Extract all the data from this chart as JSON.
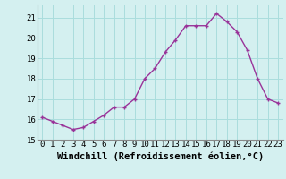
{
  "x": [
    0,
    1,
    2,
    3,
    4,
    5,
    6,
    7,
    8,
    9,
    10,
    11,
    12,
    13,
    14,
    15,
    16,
    17,
    18,
    19,
    20,
    21,
    22,
    23
  ],
  "y": [
    16.1,
    15.9,
    15.7,
    15.5,
    15.6,
    15.9,
    16.2,
    16.6,
    16.6,
    17.0,
    18.0,
    18.5,
    19.3,
    19.9,
    20.6,
    20.6,
    20.6,
    21.2,
    20.8,
    20.3,
    19.4,
    18.0,
    17.0,
    16.8
  ],
  "line_color": "#993399",
  "marker": "+",
  "marker_size": 3,
  "line_width": 1.0,
  "bg_color": "#d4f0f0",
  "grid_color": "#aadddd",
  "xlabel": "Windchill (Refroidissement éolien,°C)",
  "xlabel_fontsize": 7.5,
  "tick_fontsize": 6.5,
  "xlim": [
    -0.5,
    23.5
  ],
  "ylim": [
    15.0,
    21.6
  ],
  "yticks": [
    15,
    16,
    17,
    18,
    19,
    20,
    21
  ],
  "xticks": [
    0,
    1,
    2,
    3,
    4,
    5,
    6,
    7,
    8,
    9,
    10,
    11,
    12,
    13,
    14,
    15,
    16,
    17,
    18,
    19,
    20,
    21,
    22,
    23
  ]
}
